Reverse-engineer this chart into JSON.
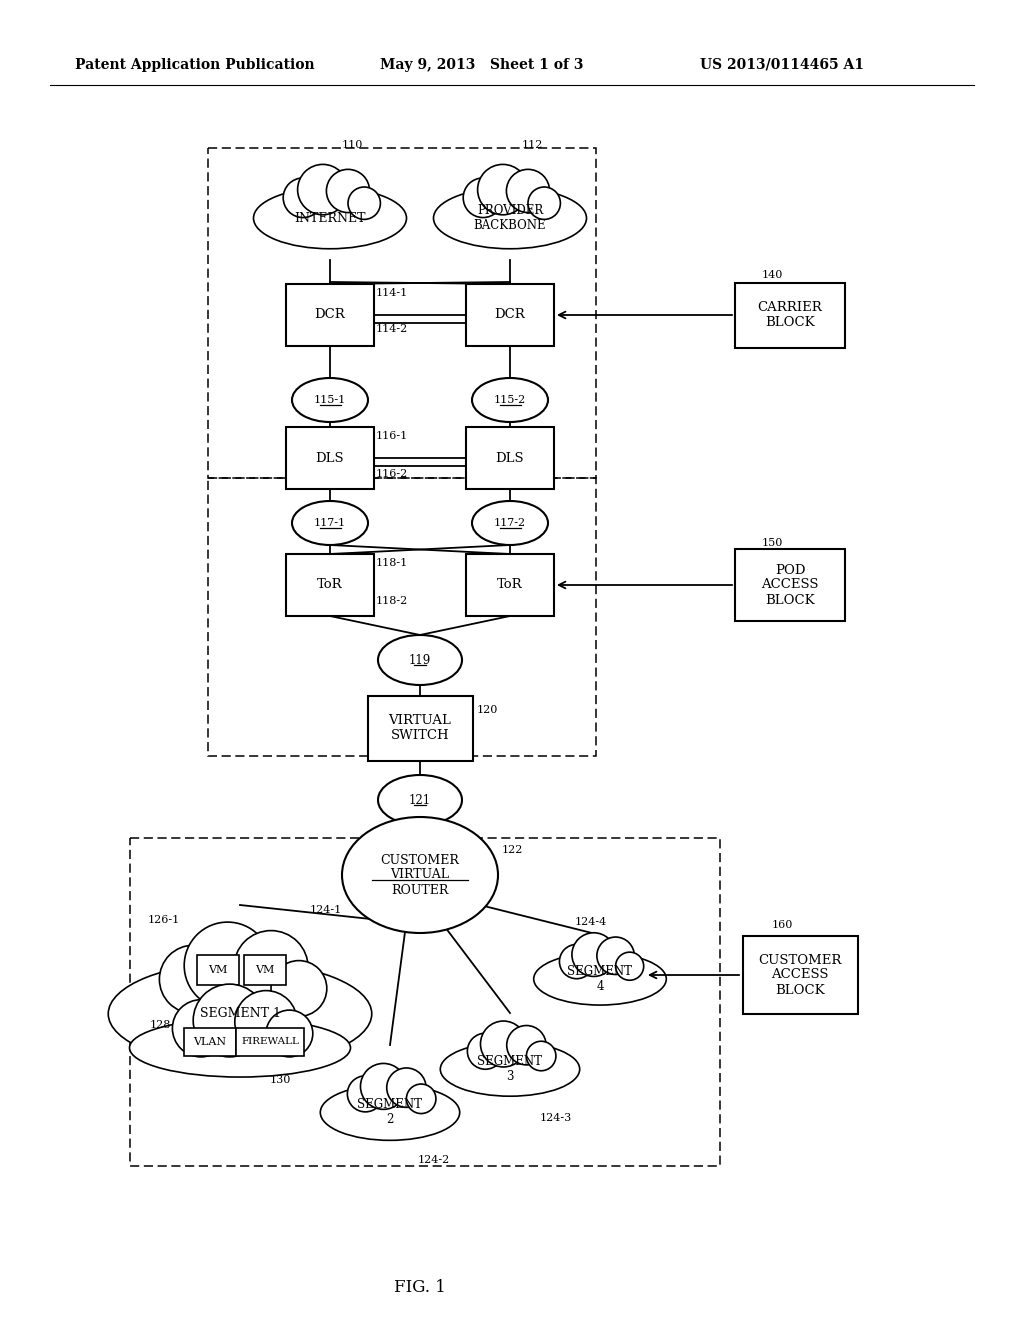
{
  "bg_color": "#ffffff",
  "header_left": "Patent Application Publication",
  "header_mid": "May 9, 2013   Sheet 1 of 3",
  "header_right": "US 2013/0114465 A1",
  "fig_label": "FIG. 1",
  "lw": 1.3
}
